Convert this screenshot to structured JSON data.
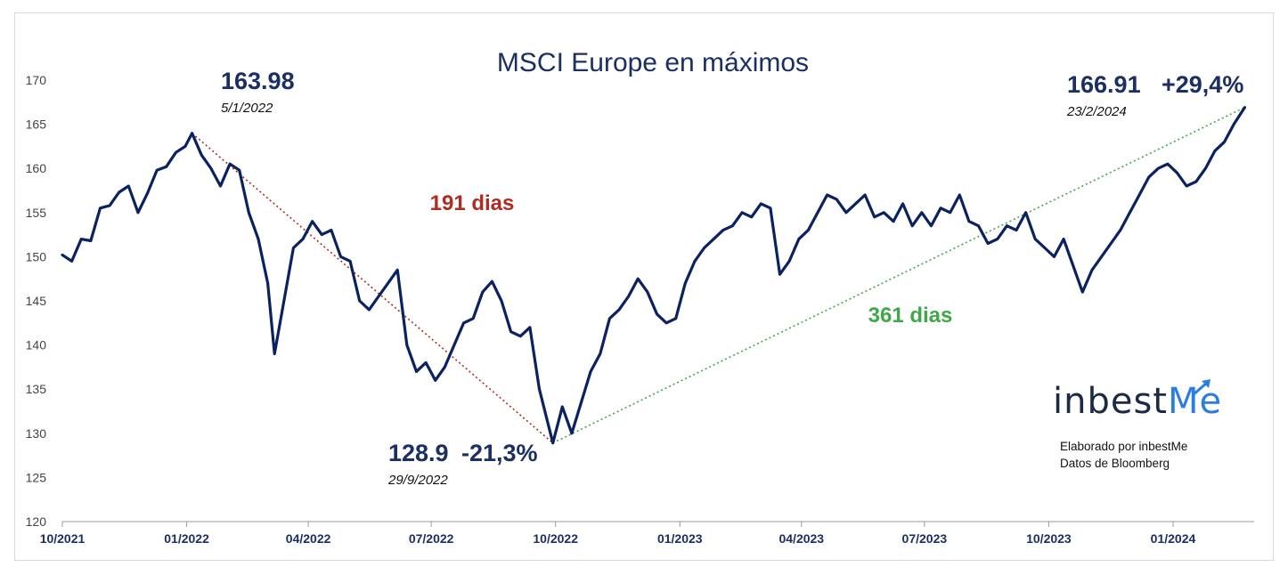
{
  "chart_data": {
    "type": "line",
    "title": "MSCI Europe en máximos",
    "ylim": [
      120,
      170
    ],
    "y_ticks": [
      120,
      125,
      130,
      135,
      140,
      145,
      150,
      155,
      160,
      165,
      170
    ],
    "x_ticks": [
      "10/2021",
      "01/2022",
      "04/2022",
      "07/2022",
      "10/2022",
      "01/2023",
      "04/2023",
      "07/2023",
      "10/2023",
      "01/2024"
    ],
    "grid": false,
    "series": [
      {
        "color": "#0b2260",
        "points": [
          [
            "2021-10-01",
            150.2
          ],
          [
            "2021-10-08",
            149.5
          ],
          [
            "2021-10-15",
            152.0
          ],
          [
            "2021-10-22",
            151.8
          ],
          [
            "2021-10-29",
            155.5
          ],
          [
            "2021-11-05",
            155.8
          ],
          [
            "2021-11-12",
            157.3
          ],
          [
            "2021-11-19",
            158.0
          ],
          [
            "2021-11-26",
            155.0
          ],
          [
            "2021-12-03",
            157.2
          ],
          [
            "2021-12-10",
            159.8
          ],
          [
            "2021-12-17",
            160.2
          ],
          [
            "2021-12-24",
            161.8
          ],
          [
            "2021-12-31",
            162.5
          ],
          [
            "2022-01-05",
            163.98
          ],
          [
            "2022-01-12",
            161.5
          ],
          [
            "2022-01-19",
            160.0
          ],
          [
            "2022-01-26",
            158.0
          ],
          [
            "2022-02-02",
            160.5
          ],
          [
            "2022-02-09",
            159.8
          ],
          [
            "2022-02-16",
            155.0
          ],
          [
            "2022-02-23",
            152.0
          ],
          [
            "2022-03-02",
            147.0
          ],
          [
            "2022-03-07",
            139.0
          ],
          [
            "2022-03-14",
            145.0
          ],
          [
            "2022-03-21",
            151.0
          ],
          [
            "2022-03-28",
            152.0
          ],
          [
            "2022-04-04",
            154.0
          ],
          [
            "2022-04-11",
            152.5
          ],
          [
            "2022-04-18",
            153.0
          ],
          [
            "2022-04-25",
            150.0
          ],
          [
            "2022-05-02",
            149.5
          ],
          [
            "2022-05-09",
            145.0
          ],
          [
            "2022-05-16",
            144.0
          ],
          [
            "2022-05-23",
            145.5
          ],
          [
            "2022-05-30",
            147.0
          ],
          [
            "2022-06-06",
            148.5
          ],
          [
            "2022-06-13",
            140.0
          ],
          [
            "2022-06-20",
            137.0
          ],
          [
            "2022-06-27",
            138.0
          ],
          [
            "2022-07-04",
            136.0
          ],
          [
            "2022-07-11",
            137.5
          ],
          [
            "2022-07-18",
            140.0
          ],
          [
            "2022-07-25",
            142.5
          ],
          [
            "2022-08-01",
            143.0
          ],
          [
            "2022-08-08",
            146.0
          ],
          [
            "2022-08-15",
            147.2
          ],
          [
            "2022-08-22",
            145.0
          ],
          [
            "2022-08-29",
            141.5
          ],
          [
            "2022-09-05",
            141.0
          ],
          [
            "2022-09-12",
            142.0
          ],
          [
            "2022-09-19",
            135.0
          ],
          [
            "2022-09-29",
            128.9
          ],
          [
            "2022-10-06",
            133.0
          ],
          [
            "2022-10-13",
            130.0
          ],
          [
            "2022-10-20",
            133.5
          ],
          [
            "2022-10-27",
            137.0
          ],
          [
            "2022-11-03",
            139.0
          ],
          [
            "2022-11-10",
            143.0
          ],
          [
            "2022-11-17",
            144.0
          ],
          [
            "2022-11-24",
            145.5
          ],
          [
            "2022-12-01",
            147.5
          ],
          [
            "2022-12-08",
            146.0
          ],
          [
            "2022-12-15",
            143.5
          ],
          [
            "2022-12-22",
            142.5
          ],
          [
            "2022-12-29",
            143.0
          ],
          [
            "2023-01-05",
            147.0
          ],
          [
            "2023-01-12",
            149.5
          ],
          [
            "2023-01-19",
            151.0
          ],
          [
            "2023-01-26",
            152.0
          ],
          [
            "2023-02-02",
            153.0
          ],
          [
            "2023-02-09",
            153.5
          ],
          [
            "2023-02-16",
            155.0
          ],
          [
            "2023-02-23",
            154.5
          ],
          [
            "2023-03-02",
            156.0
          ],
          [
            "2023-03-09",
            155.5
          ],
          [
            "2023-03-16",
            148.0
          ],
          [
            "2023-03-23",
            149.5
          ],
          [
            "2023-03-30",
            152.0
          ],
          [
            "2023-04-06",
            153.0
          ],
          [
            "2023-04-13",
            155.0
          ],
          [
            "2023-04-20",
            157.0
          ],
          [
            "2023-04-27",
            156.5
          ],
          [
            "2023-05-04",
            155.0
          ],
          [
            "2023-05-11",
            156.0
          ],
          [
            "2023-05-18",
            157.0
          ],
          [
            "2023-05-25",
            154.5
          ],
          [
            "2023-06-01",
            155.0
          ],
          [
            "2023-06-08",
            154.0
          ],
          [
            "2023-06-15",
            156.0
          ],
          [
            "2023-06-22",
            153.5
          ],
          [
            "2023-06-29",
            155.0
          ],
          [
            "2023-07-06",
            153.5
          ],
          [
            "2023-07-13",
            155.5
          ],
          [
            "2023-07-20",
            155.0
          ],
          [
            "2023-07-27",
            157.0
          ],
          [
            "2023-08-03",
            154.0
          ],
          [
            "2023-08-10",
            153.5
          ],
          [
            "2023-08-17",
            151.5
          ],
          [
            "2023-08-24",
            152.0
          ],
          [
            "2023-08-31",
            153.5
          ],
          [
            "2023-09-07",
            153.0
          ],
          [
            "2023-09-14",
            155.0
          ],
          [
            "2023-09-21",
            152.0
          ],
          [
            "2023-09-28",
            151.0
          ],
          [
            "2023-10-05",
            150.0
          ],
          [
            "2023-10-12",
            152.0
          ],
          [
            "2023-10-19",
            149.0
          ],
          [
            "2023-10-26",
            146.0
          ],
          [
            "2023-11-02",
            148.5
          ],
          [
            "2023-11-09",
            150.0
          ],
          [
            "2023-11-16",
            151.5
          ],
          [
            "2023-11-23",
            153.0
          ],
          [
            "2023-11-30",
            155.0
          ],
          [
            "2023-12-07",
            157.0
          ],
          [
            "2023-12-14",
            159.0
          ],
          [
            "2023-12-21",
            160.0
          ],
          [
            "2023-12-28",
            160.5
          ],
          [
            "2024-01-04",
            159.5
          ],
          [
            "2024-01-11",
            158.0
          ],
          [
            "2024-01-18",
            158.5
          ],
          [
            "2024-01-25",
            160.0
          ],
          [
            "2024-02-01",
            162.0
          ],
          [
            "2024-02-08",
            163.0
          ],
          [
            "2024-02-15",
            165.0
          ],
          [
            "2024-02-23",
            166.91
          ]
        ]
      }
    ],
    "annotations": [
      {
        "value": "163.98",
        "date": "5/1/2022",
        "color": "#1b2f63"
      },
      {
        "value": "128.9",
        "change": "-21,3%",
        "date": "29/9/2022",
        "color": "#1b2f63"
      },
      {
        "value": "166.91",
        "change": "+29,4%",
        "date": "23/2/2024",
        "color": "#1b2f63"
      }
    ],
    "trend_lines": [
      {
        "label": "191 dias",
        "color": "#b02b20",
        "from": [
          "2022-01-05",
          163.98
        ],
        "to": [
          "2022-09-29",
          128.9
        ]
      },
      {
        "label": "361 dias",
        "color": "#3fa848",
        "from": [
          "2022-09-29",
          128.9
        ],
        "to": [
          "2024-02-23",
          166.91
        ]
      }
    ]
  },
  "brand": {
    "logo_text_a": "inbest",
    "logo_text_b": "Me",
    "logo_colors": {
      "dark": "#1c2a44",
      "accent": "#2a7de1"
    },
    "credit_line_1": "Elaborado por inbestMe",
    "credit_line_2": "Datos de Bloomberg"
  }
}
